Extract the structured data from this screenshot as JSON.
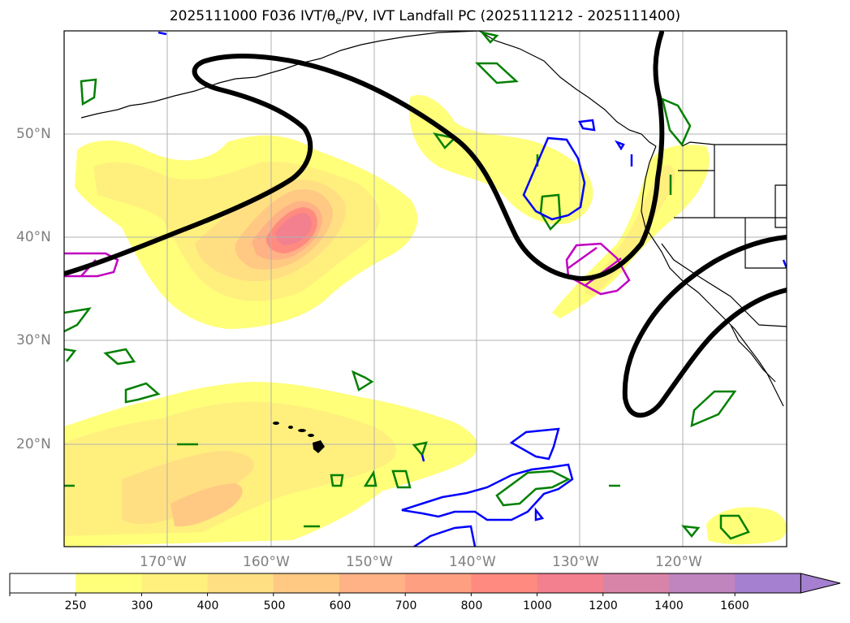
{
  "title": {
    "prefix": "2025111000 F036 IVT/θ",
    "sub": "e",
    "suffix": "/PV, IVT Landfall PC (2025111212 - 2025111400)"
  },
  "axes": {
    "lat_labels": [
      "50°N",
      "40°N",
      "30°N",
      "20°N"
    ],
    "lon_labels": [
      "170°W",
      "160°W",
      "150°W",
      "140°W",
      "130°W",
      "120°W"
    ]
  },
  "colorbar": {
    "ticks": [
      "250",
      "300",
      "400",
      "500",
      "600",
      "700",
      "800",
      "1000",
      "1200",
      "1400",
      "1600"
    ],
    "colors": [
      "#ffffff",
      "#ffff7a",
      "#fff07e",
      "#ffdf82",
      "#ffc984",
      "#ffb286",
      "#ff9f82",
      "#ff8b80",
      "#f2808f",
      "#d884a8",
      "#c084bf",
      "#a57fd0"
    ]
  },
  "colors": {
    "jet": "#000000",
    "green_contour": "#008000",
    "blue_contour": "#0000ff",
    "magenta_contour": "#c000c0",
    "grid": "#b0b0b0"
  }
}
